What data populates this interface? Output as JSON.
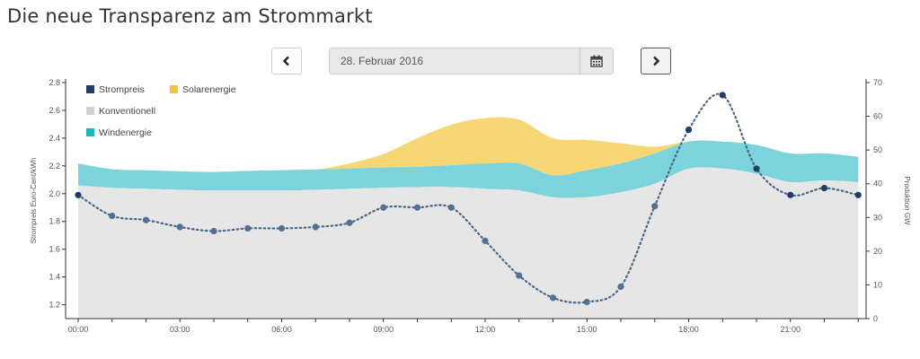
{
  "page": {
    "title": "Die neue Transparenz am Strommarkt"
  },
  "date_picker": {
    "value": "28. Februar 2016",
    "prev_icon": "chevron-left-icon",
    "next_icon": "chevron-right-icon",
    "calendar_icon": "calendar-icon"
  },
  "colors": {
    "strompreis": "#1f3d66",
    "solar": "#f7d774",
    "konventionell": "#e6e6e6",
    "wind": "#7dd3dc"
  },
  "chart_data": {
    "type": "area",
    "title": "",
    "x_tick_labels": [
      "00:00",
      "03:00",
      "06:00",
      "09:00",
      "12:00",
      "15:00",
      "18:00",
      "21:00"
    ],
    "x_hours": [
      0,
      1,
      2,
      3,
      4,
      5,
      6,
      7,
      8,
      9,
      10,
      11,
      12,
      13,
      14,
      15,
      16,
      17,
      18,
      19,
      20,
      21,
      22,
      23
    ],
    "ylabel_left": "Strompreis Euro-Cent/kWh",
    "ylabel_right": "Produktion GW",
    "ylim_left": [
      1.1,
      2.8
    ],
    "left_ticks": [
      "1.2",
      "1.4",
      "1.6",
      "1.8",
      "2.0",
      "2.2",
      "2.4",
      "2.6",
      "2.8"
    ],
    "ylim_right": [
      0,
      70
    ],
    "right_ticks": [
      "0",
      "10",
      "20",
      "30",
      "40",
      "50",
      "60",
      "70"
    ],
    "legend": {
      "placement": "top-left",
      "items": [
        "Strompreis",
        "Solarenergie",
        "Konventionell",
        "Windenergie"
      ]
    },
    "series": [
      {
        "name": "Strompreis",
        "axis": "left",
        "style": "dotted-line",
        "values": [
          1.99,
          1.84,
          1.81,
          1.76,
          1.73,
          1.75,
          1.75,
          1.76,
          1.79,
          1.9,
          1.9,
          1.9,
          1.66,
          1.41,
          1.25,
          1.22,
          1.33,
          1.91,
          2.46,
          2.71,
          2.18,
          1.99,
          2.04,
          1.99
        ]
      },
      {
        "name": "Konventionell",
        "axis": "right",
        "style": "area",
        "values": [
          39.5,
          38.8,
          38.5,
          38.2,
          38.0,
          38.0,
          38.0,
          38.2,
          38.5,
          38.8,
          39.0,
          39.0,
          38.5,
          38.0,
          36.0,
          36.0,
          37.5,
          40.0,
          44.5,
          44.5,
          43.0,
          40.5,
          41.0,
          40.5
        ]
      },
      {
        "name": "Windenergie",
        "axis": "right",
        "style": "stacked-area",
        "values": [
          6.5,
          5.5,
          5.5,
          5.5,
          5.5,
          5.8,
          6.0,
          6.0,
          6.0,
          6.0,
          6.0,
          6.5,
          7.5,
          8.0,
          6.5,
          8.0,
          8.5,
          9.0,
          8.0,
          8.0,
          8.5,
          8.5,
          8.0,
          7.5
        ]
      },
      {
        "name": "Solarenergie",
        "axis": "right",
        "style": "stacked-area",
        "values": [
          0,
          0,
          0,
          0,
          0,
          0,
          0,
          0,
          1.5,
          4.0,
          8.5,
          12.0,
          13.5,
          13.0,
          11.0,
          9.0,
          6.0,
          2.0,
          0,
          0,
          0,
          0,
          0,
          0
        ]
      }
    ]
  }
}
